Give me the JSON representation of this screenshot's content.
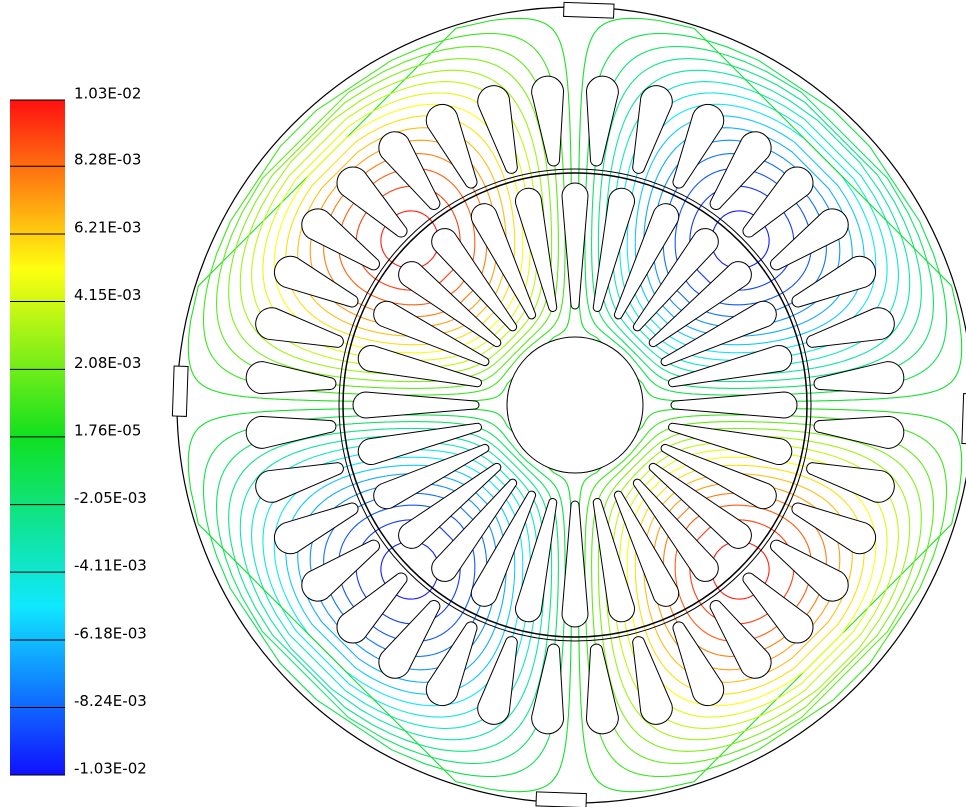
{
  "chart_data": {
    "type": "contour",
    "zlim": [
      -0.0103,
      0.0103
    ],
    "zticks": [
      {
        "value": 0.0103,
        "label": "1.03E-02"
      },
      {
        "value": 0.00828,
        "label": "8.28E-03"
      },
      {
        "value": 0.00621,
        "label": "6.21E-03"
      },
      {
        "value": 0.00415,
        "label": "4.15E-03"
      },
      {
        "value": 0.00208,
        "label": "2.08E-03"
      },
      {
        "value": 1.76e-05,
        "label": "1.76E-05"
      },
      {
        "value": -0.00205,
        "label": "-2.05E-03"
      },
      {
        "value": -0.00411,
        "label": "-4.11E-03"
      },
      {
        "value": -0.00618,
        "label": "-6.18E-03"
      },
      {
        "value": -0.00824,
        "label": "-8.24E-03"
      },
      {
        "value": -0.0103,
        "label": "-1.03E-02"
      }
    ],
    "colormap": [
      "#1010ff",
      "#10e8ff",
      "#10e020",
      "#ffff10",
      "#ff1010"
    ]
  }
}
